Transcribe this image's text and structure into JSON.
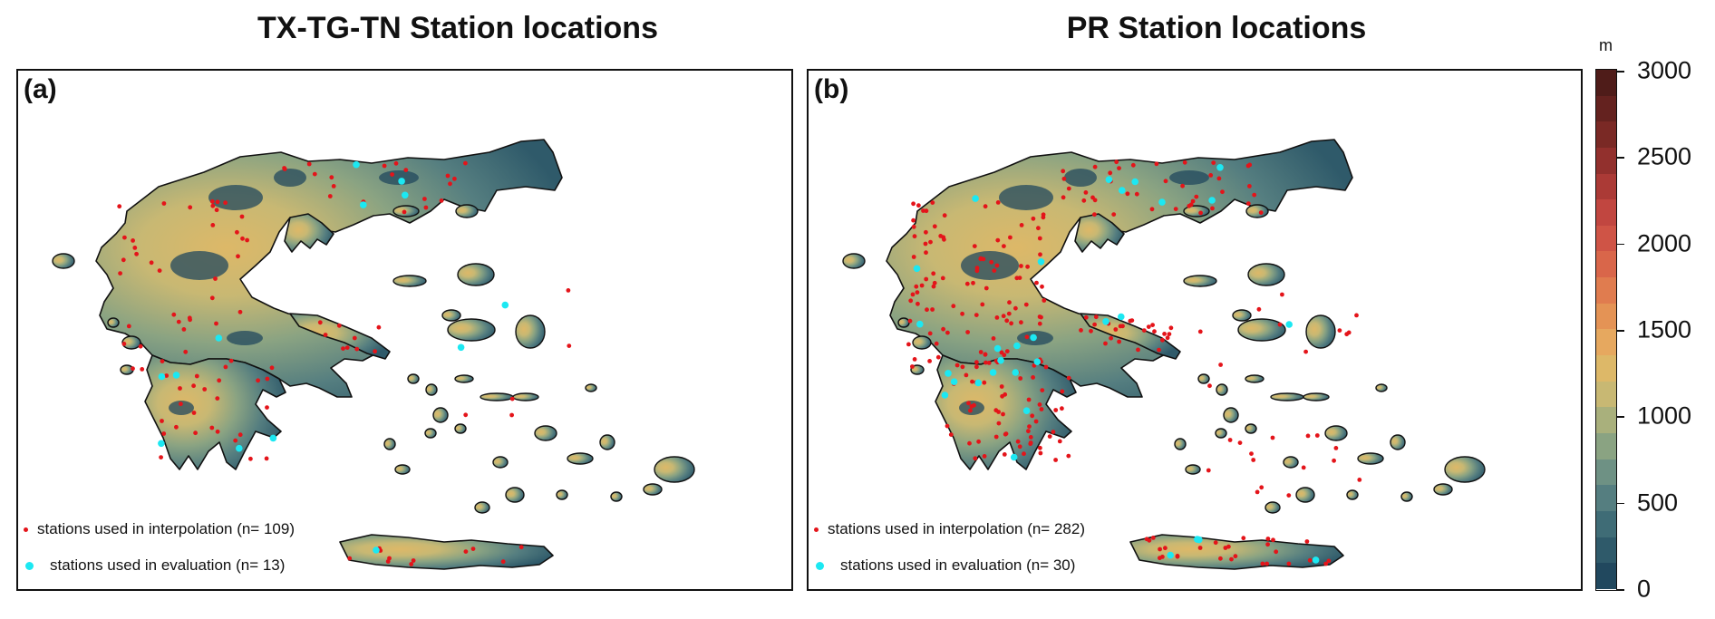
{
  "panels": [
    {
      "title": "TX-TG-TN Station locations",
      "letter": "(a)",
      "legend": {
        "interp_label": "stations used in interpolation (n= 109)",
        "eval_label": "stations used in evaluation (n= 13)"
      }
    },
    {
      "title": "PR Station locations",
      "letter": "(b)",
      "legend": {
        "interp_label": "stations used in interpolation (n= 282)",
        "eval_label": "stations used in evaluation (n= 30)"
      }
    }
  ],
  "colorbar": {
    "unit": "m",
    "ticks": [
      "3000",
      "2500",
      "2000",
      "1500",
      "1000",
      "500",
      "0"
    ],
    "colors_low_to_high": [
      "#21485e",
      "#2f5a6a",
      "#3f6c76",
      "#557e80",
      "#6e9184",
      "#8aa382",
      "#a9b07c",
      "#c8b873",
      "#ddb868",
      "#e6a85f",
      "#e49355",
      "#e07c4f",
      "#d9664a",
      "#cf5446",
      "#c14640",
      "#ab3a36",
      "#92302d",
      "#7a2925",
      "#64221f",
      "#4f1c19"
    ]
  },
  "colors": {
    "interpolation_station": "#e4141a",
    "evaluation_station": "#1ce8f2",
    "sea": "#ffffff",
    "coastline": "#111111"
  }
}
